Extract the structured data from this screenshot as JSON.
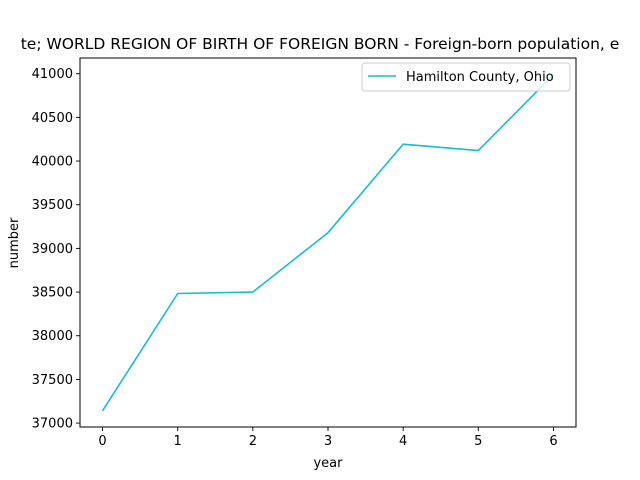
{
  "chart_data": {
    "type": "line",
    "title": "te; WORLD REGION OF BIRTH OF FOREIGN BORN - Foreign-born population, e",
    "xlabel": "year",
    "ylabel": "number",
    "x": [
      0,
      1,
      2,
      3,
      4,
      5,
      6
    ],
    "xlim": [
      -0.3,
      6.3
    ],
    "ylim": [
      36955,
      41180
    ],
    "xticks": [
      "0",
      "1",
      "2",
      "3",
      "4",
      "5",
      "6"
    ],
    "yticks": [
      "37000",
      "37500",
      "38000",
      "38500",
      "39000",
      "39500",
      "40000",
      "40500",
      "41000"
    ],
    "series": [
      {
        "name": "Hamilton County, Ohio",
        "color": "#17becf",
        "values": [
          37140,
          38483,
          38500,
          39180,
          40193,
          40120,
          40990
        ]
      }
    ],
    "legend_position": "top-right",
    "grid": false
  }
}
